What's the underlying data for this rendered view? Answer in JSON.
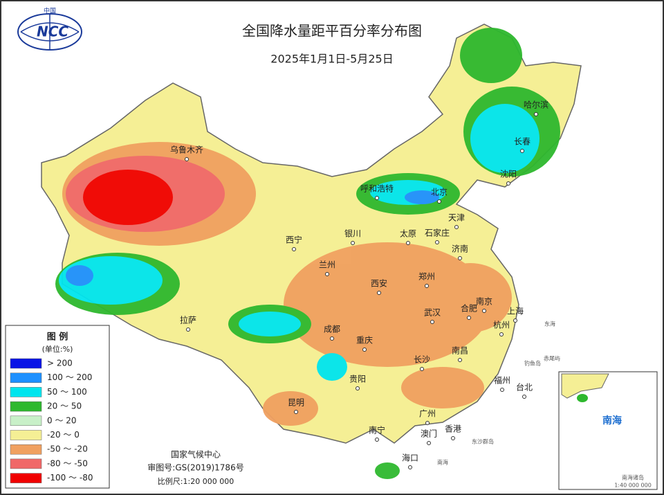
{
  "header": {
    "logo_top": "中国",
    "logo_text": "NCC",
    "title": "全国降水量距平百分率分布图",
    "date": "2025年1月1日-5月25日"
  },
  "legend": {
    "title": "图 例",
    "unit": "(单位:%)",
    "items": [
      {
        "label": "> 200",
        "color": "#0a14e6"
      },
      {
        "label": "100 ～ 200",
        "color": "#1e90ff"
      },
      {
        "label": "50 ～ 100",
        "color": "#00e5ee"
      },
      {
        "label": "20 ～ 50",
        "color": "#2eb82e"
      },
      {
        "label": "0 ～ 20",
        "color": "#c8f0c8"
      },
      {
        "label": "-20 ～ 0",
        "color": "#f5ef95"
      },
      {
        "label": "-50 ～ -20",
        "color": "#f0a060"
      },
      {
        "label": "-80 ～ -50",
        "color": "#f06868"
      },
      {
        "label": "-100 ～ -80",
        "color": "#f00000"
      }
    ]
  },
  "cities": [
    "乌鲁木齐",
    "哈尔滨",
    "长春",
    "沈阳",
    "呼和浩特",
    "北京",
    "天津",
    "银川",
    "太原",
    "石家庄",
    "济南",
    "西宁",
    "兰州",
    "西安",
    "郑州",
    "拉萨",
    "成都",
    "重庆",
    "武汉",
    "合肥",
    "南京",
    "上海",
    "杭州",
    "长沙",
    "南昌",
    "贵阳",
    "昆明",
    "福州",
    "台北",
    "广州",
    "南宁",
    "澳门",
    "香港",
    "海口"
  ],
  "places": [
    "东海",
    "钓鱼岛",
    "赤尾屿",
    "东沙群岛",
    "南海"
  ],
  "footer": {
    "org": "国家气候中心",
    "approval": "审图号:GS(2019)1786号",
    "scale": "比例尺:1:20 000 000"
  },
  "inset": {
    "title": "南海",
    "label": "南海诸岛",
    "scale": "1:40 000 000"
  }
}
